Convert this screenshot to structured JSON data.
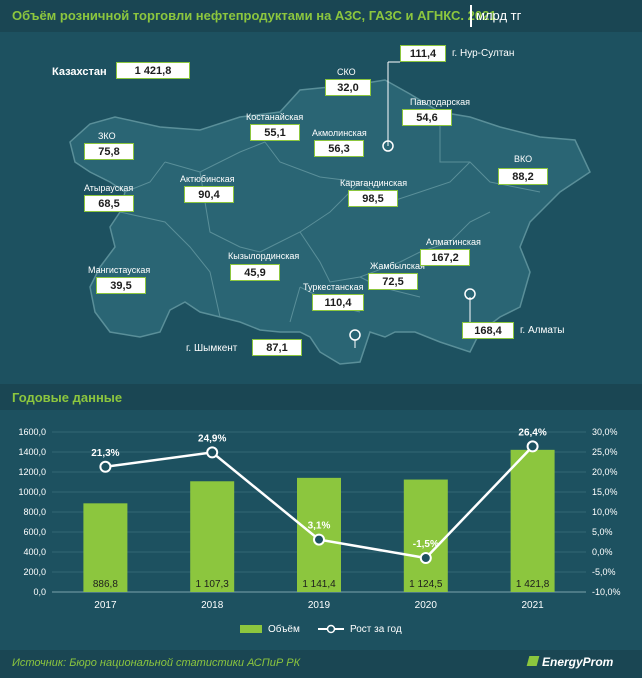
{
  "header": {
    "title": "Объём розничной торговли нефтепродуктами на АЗС, ГАЗС и АГНКС. 2021",
    "unit": "млрд тг"
  },
  "map": {
    "total": {
      "label": "Казахстан",
      "value": "1 421,8"
    },
    "regions": [
      {
        "label": "ЗКО",
        "value": "75,8"
      },
      {
        "label": "Атырауская",
        "value": "68,5"
      },
      {
        "label": "Мангистауская",
        "value": "39,5"
      },
      {
        "label": "Актюбинская",
        "value": "90,4"
      },
      {
        "label": "Костанайская",
        "value": "55,1"
      },
      {
        "label": "СКО",
        "value": "32,0"
      },
      {
        "label": "Акмолинская",
        "value": "56,3"
      },
      {
        "label": "Павлодарская",
        "value": "54,6"
      },
      {
        "label": "ВКО",
        "value": "88,2"
      },
      {
        "label": "Карагандинская",
        "value": "98,5"
      },
      {
        "label": "Кызылординская",
        "value": "45,9"
      },
      {
        "label": "Туркестанская",
        "value": "110,4"
      },
      {
        "label": "Жамбылская",
        "value": "72,5"
      },
      {
        "label": "Алматинская",
        "value": "167,2"
      }
    ],
    "cities": [
      {
        "label": "г. Нур-Султан",
        "value": "111,4"
      },
      {
        "label": "г. Алматы",
        "value": "168,4"
      },
      {
        "label": "г. Шымкент",
        "value": "87,1"
      }
    ],
    "colors": {
      "land": "#2a6574",
      "border": "#5a8f99",
      "box": "#ffffff",
      "box_border": "#8cc63e"
    }
  },
  "section2": {
    "title": "Годовые данные"
  },
  "chart_data": {
    "type": "bar",
    "categories": [
      "2017",
      "2018",
      "2019",
      "2020",
      "2021"
    ],
    "series": [
      {
        "name": "Объём",
        "type": "bar",
        "axis": "left",
        "values": [
          886.8,
          1107.3,
          1141.4,
          1124.5,
          1421.8
        ],
        "labels": [
          "886,8",
          "1 107,3",
          "1 141,4",
          "1 124,5",
          "1 421,8"
        ],
        "color": "#8cc63e"
      },
      {
        "name": "Рост за год",
        "type": "line",
        "axis": "right",
        "values": [
          21.3,
          24.9,
          3.1,
          -1.5,
          26.4
        ],
        "labels": [
          "21,3%",
          "24,9%",
          "3,1%",
          "-1,5%",
          "26,4%"
        ],
        "color": "#ffffff"
      }
    ],
    "ylim_left": [
      0,
      1600
    ],
    "yticks_left": [
      "0,0",
      "200,0",
      "400,0",
      "600,0",
      "800,0",
      "1000,0",
      "1200,0",
      "1400,0",
      "1600,0"
    ],
    "ylim_right": [
      -10,
      30
    ],
    "yticks_right": [
      "-10,0%",
      "-5,0%",
      "0,0%",
      "5,0%",
      "10,0%",
      "15,0%",
      "20,0%",
      "25,0%",
      "30,0%"
    ],
    "grid": true,
    "legend": "bottom"
  },
  "footer": {
    "source": "Источник: Бюро национальной статистики АСПиР РК",
    "logo": "EnergyProm"
  }
}
